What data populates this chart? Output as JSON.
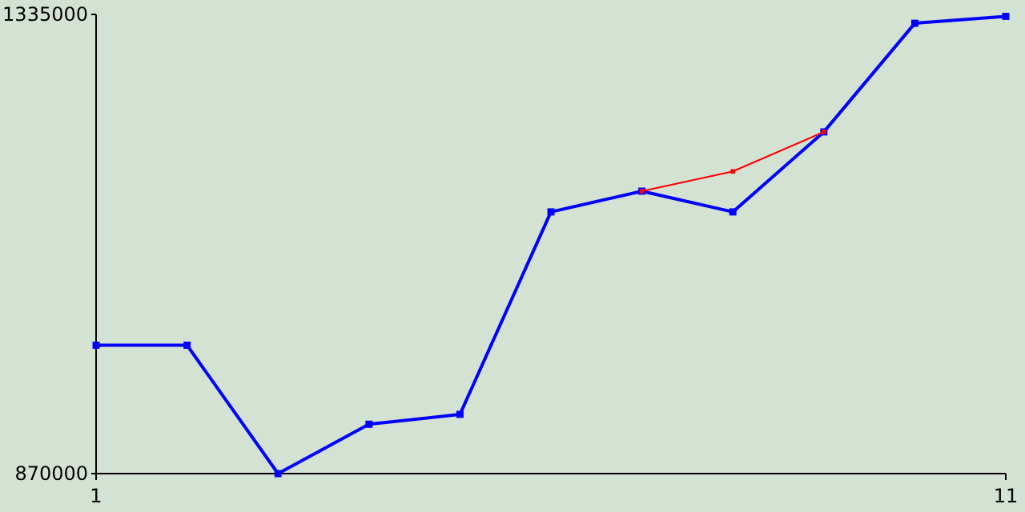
{
  "chart_data": {
    "type": "line",
    "x": [
      1,
      2,
      3,
      4,
      5,
      6,
      7,
      8,
      9,
      10,
      11
    ],
    "xlim": [
      1,
      11
    ],
    "xticks": [
      1,
      11
    ],
    "ylim": [
      870000,
      1335000
    ],
    "yticks": [
      870000,
      1335000
    ],
    "marker": "square",
    "grid": false,
    "series": [
      {
        "color": "#0000ff",
        "values": [
          1000000,
          1000000,
          870000,
          920000,
          930000,
          1135000,
          1156000,
          1135000,
          1216000,
          1326000,
          1333000
        ]
      },
      {
        "color": "#ff0000",
        "values": [
          null,
          null,
          null,
          null,
          null,
          null,
          1156000,
          1176000,
          1216000,
          null,
          null
        ]
      }
    ]
  }
}
